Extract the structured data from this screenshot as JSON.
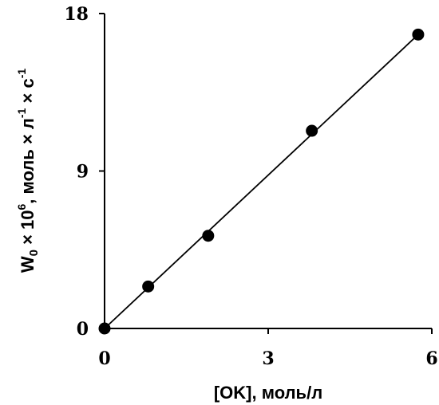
{
  "chart_data": {
    "type": "scatter",
    "title": "",
    "xlabel": "[OK], моль/л",
    "ylabel": {
      "w": "W",
      "w_sub": "0",
      "times1": " × 10",
      "exp6": "6",
      "rest": ",  моль × л",
      "exp_minus1a": "-1",
      "times2": " × с",
      "exp_minus1b": "-1"
    },
    "xlim": [
      0,
      6
    ],
    "ylim": [
      0,
      18
    ],
    "xticks": [
      "0",
      "3",
      "6"
    ],
    "yticks": [
      "0",
      "9",
      "18"
    ],
    "grid": false,
    "series": [
      {
        "points": [
          {
            "x": 0.0,
            "y": 0.0
          },
          {
            "x": 0.8,
            "y": 2.4
          },
          {
            "x": 1.9,
            "y": 5.3
          },
          {
            "x": 3.8,
            "y": 11.3
          },
          {
            "x": 5.75,
            "y": 16.8
          }
        ]
      }
    ],
    "fit_line": {
      "x": [
        0,
        5.75
      ],
      "y": [
        0,
        16.8
      ]
    }
  }
}
